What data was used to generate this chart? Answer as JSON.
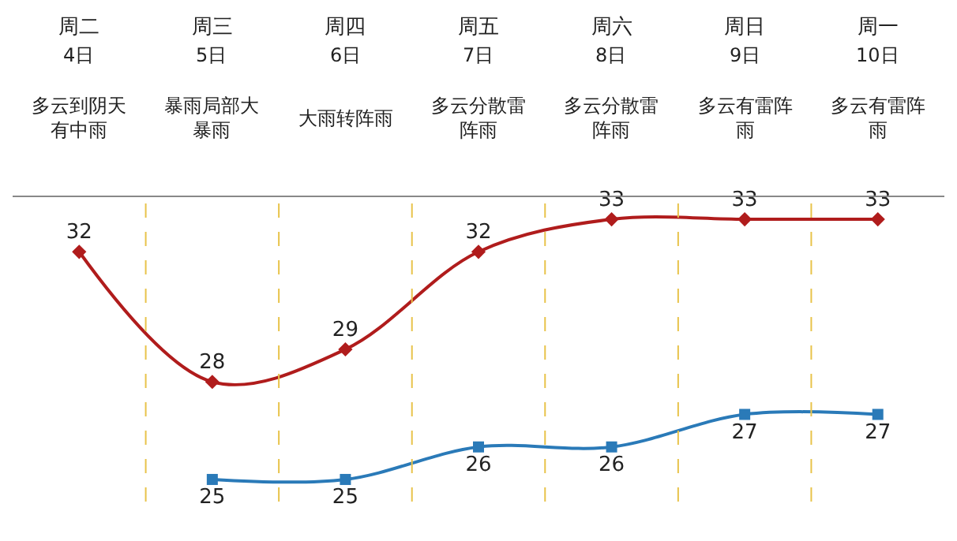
{
  "chart_data": {
    "type": "line",
    "categories": [
      "周二",
      "周三",
      "周四",
      "周五",
      "周六",
      "周日",
      "周一"
    ],
    "annotations": [
      "4日",
      "5日",
      "6日",
      "7日",
      "8日",
      "9日",
      "10日",
      "多云到阴天有中雨",
      "暴雨局部大暴雨",
      "大雨转阵雨",
      "多云分散雷阵雨",
      "多云分散雷阵雨",
      "多云有雷阵雨",
      "多云有雷阵雨"
    ],
    "series": [
      {
        "color": "#b01c1c",
        "marker": "diamond",
        "values": [
          32,
          28,
          29,
          32,
          33,
          33,
          33
        ]
      },
      {
        "color": "#2a7ab8",
        "marker": "square",
        "values": [
          null,
          25,
          25,
          26,
          26,
          27,
          27
        ]
      }
    ],
    "data_labels": true,
    "grid": "x",
    "legend": false,
    "tick_labels": "x"
  }
}
